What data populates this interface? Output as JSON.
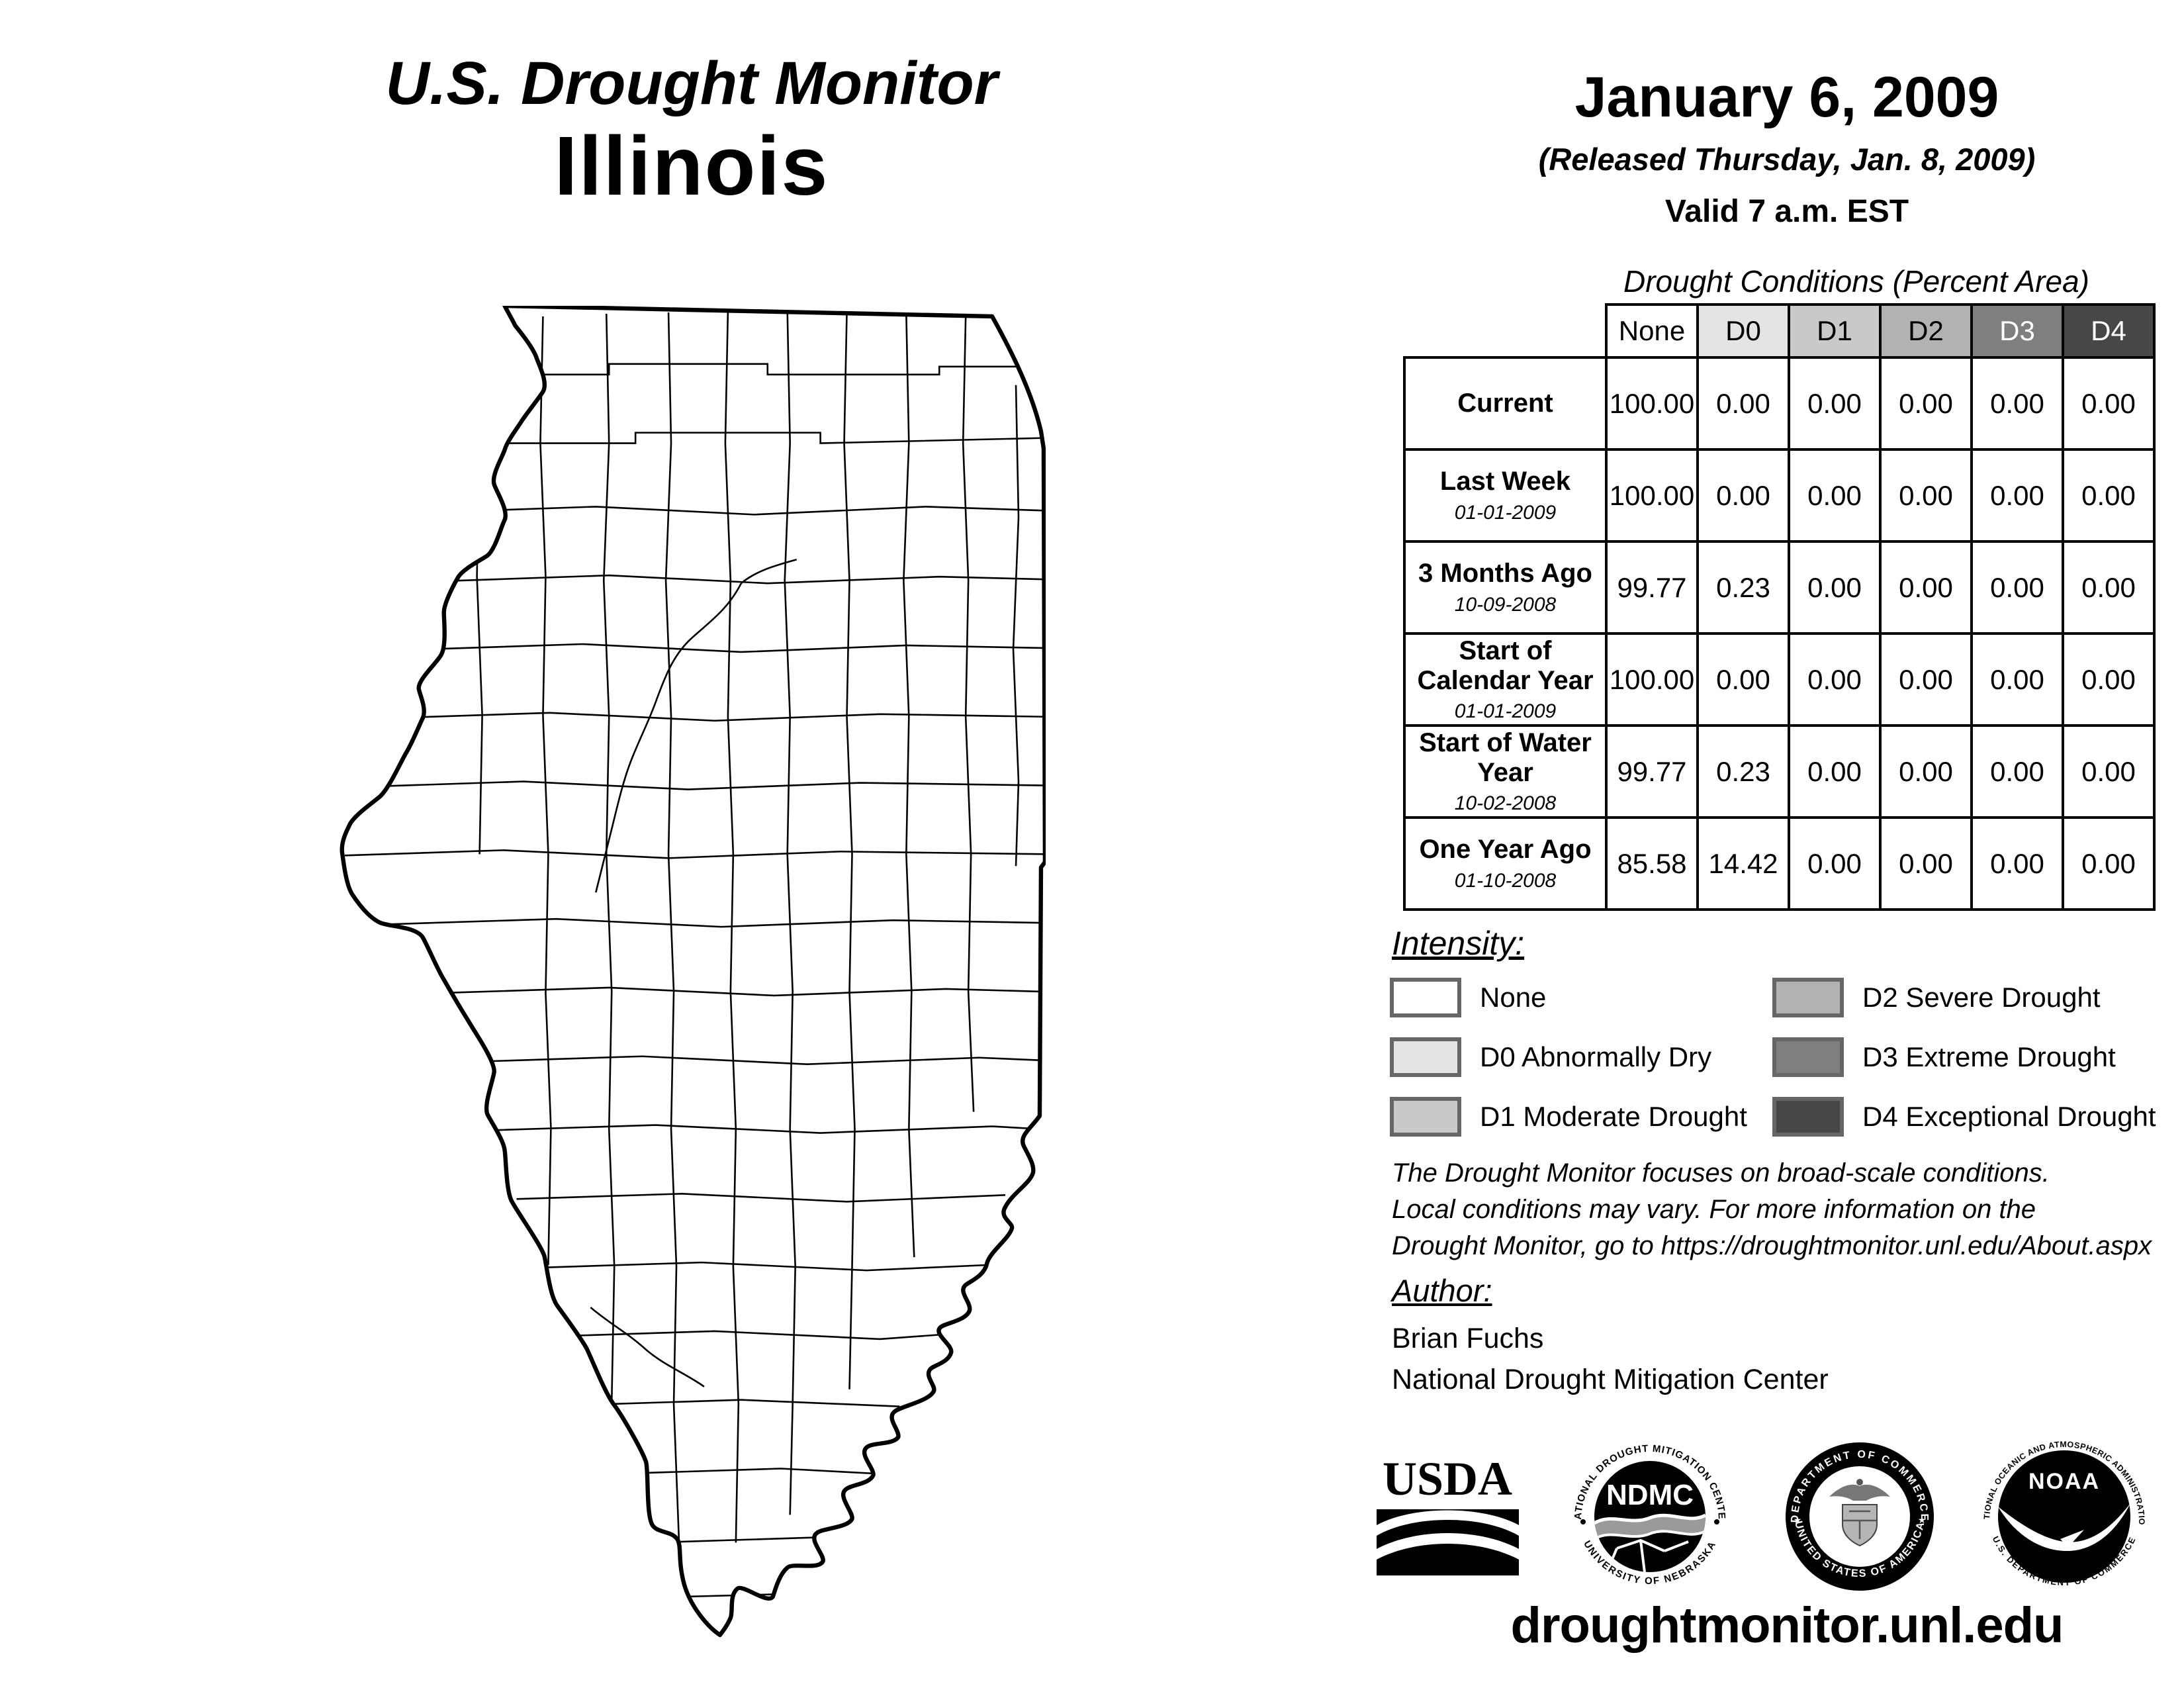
{
  "title": {
    "line1": "U.S. Drought Monitor",
    "line2": "Illinois"
  },
  "date_block": {
    "date": "January 6, 2009",
    "released": "(Released Thursday, Jan. 8, 2009)",
    "valid": "Valid 7 a.m. EST"
  },
  "map": {
    "region": "Illinois"
  },
  "table": {
    "title": "Drought Conditions (Percent Area)",
    "columns": [
      "None",
      "D0",
      "D1",
      "D2",
      "D3",
      "D4"
    ],
    "column_colors": {
      "None": {
        "bg": "#ffffff",
        "text": "#000000"
      },
      "D0": {
        "bg": "#e4e4e4",
        "text": "#000000"
      },
      "D1": {
        "bg": "#c9c9c9",
        "text": "#000000"
      },
      "D2": {
        "bg": "#b2b2b2",
        "text": "#000000"
      },
      "D3": {
        "bg": "#7f7f7f",
        "text": "#ffffff"
      },
      "D4": {
        "bg": "#474747",
        "text": "#ffffff"
      }
    },
    "rows": [
      {
        "label": "Current",
        "date": "",
        "values": [
          "100.00",
          "0.00",
          "0.00",
          "0.00",
          "0.00",
          "0.00"
        ]
      },
      {
        "label": "Last Week",
        "date": "01-01-2009",
        "values": [
          "100.00",
          "0.00",
          "0.00",
          "0.00",
          "0.00",
          "0.00"
        ]
      },
      {
        "label": "3 Months Ago",
        "date": "10-09-2008",
        "values": [
          "99.77",
          "0.23",
          "0.00",
          "0.00",
          "0.00",
          "0.00"
        ]
      },
      {
        "label": "Start of Calendar Year",
        "date": "01-01-2009",
        "values": [
          "100.00",
          "0.00",
          "0.00",
          "0.00",
          "0.00",
          "0.00"
        ]
      },
      {
        "label": "Start of Water Year",
        "date": "10-02-2008",
        "values": [
          "99.77",
          "0.23",
          "0.00",
          "0.00",
          "0.00",
          "0.00"
        ]
      },
      {
        "label": "One Year Ago",
        "date": "01-10-2008",
        "values": [
          "85.58",
          "14.42",
          "0.00",
          "0.00",
          "0.00",
          "0.00"
        ]
      }
    ]
  },
  "legend": {
    "heading": "Intensity:",
    "box_border": "#666666",
    "items": [
      {
        "code": "None",
        "label": "None",
        "color": "#ffffff"
      },
      {
        "code": "D0",
        "label": "D0 Abnormally Dry",
        "color": "#e4e4e4"
      },
      {
        "code": "D1",
        "label": "D1 Moderate Drought",
        "color": "#c9c9c9"
      },
      {
        "code": "D2",
        "label": "D2 Severe Drought",
        "color": "#b2b2b2"
      },
      {
        "code": "D3",
        "label": "D3 Extreme Drought",
        "color": "#7f7f7f"
      },
      {
        "code": "D4",
        "label": "D4 Exceptional Drought",
        "color": "#474747"
      }
    ]
  },
  "disclaimer": {
    "lines": [
      "The Drought Monitor focuses on broad-scale conditions.",
      "Local conditions may vary. For more information on the",
      "Drought Monitor, go to https://droughtmonitor.unl.edu/About.aspx"
    ]
  },
  "author": {
    "heading": "Author:",
    "name": "Brian Fuchs",
    "org": "National Drought Mitigation Center"
  },
  "logos": {
    "usda": {
      "text": "USDA"
    },
    "ndmc": {
      "text": "NDMC",
      "ring_top": "NATIONAL DROUGHT MITIGATION CENTER",
      "ring_bottom": "UNIVERSITY OF NEBRASKA"
    },
    "commerce": {
      "ring_top": "DEPARTMENT OF COMMERCE",
      "ring_bottom": "UNITED STATES OF AMERICA"
    },
    "noaa": {
      "text": "NOAA",
      "ring_top": "NATIONAL OCEANIC AND ATMOSPHERIC ADMINISTRATION",
      "ring_bottom": "U.S. DEPARTMENT OF COMMERCE"
    }
  },
  "footer": {
    "url": "droughtmonitor.unl.edu"
  }
}
